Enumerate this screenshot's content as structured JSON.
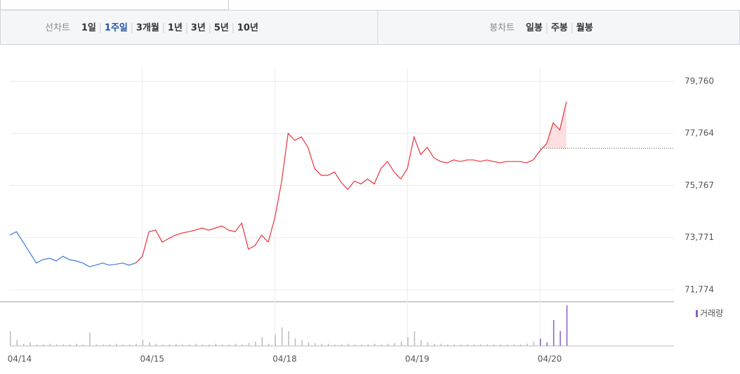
{
  "tabs": {
    "line_label": "선차트",
    "line_periods": [
      "1일",
      "1주일",
      "3개월",
      "1년",
      "3년",
      "5년",
      "10년"
    ],
    "active": 1,
    "candle_label": "봉차트",
    "candle_periods": [
      "일봉",
      "주봉",
      "월봉"
    ]
  },
  "chart_data": {
    "type": "line",
    "categories": [
      "04/14",
      "04/15",
      "04/18",
      "04/19",
      "04/20"
    ],
    "days": [
      {
        "color": "#3a7bd5",
        "values": [
          73870,
          74000,
          73600,
          73200,
          72800,
          72930,
          72980,
          72880,
          73060,
          72930,
          72880,
          72800,
          72660,
          72720,
          72800,
          72720,
          72750,
          72800,
          72720,
          72800
        ],
        "volume": [
          20,
          8,
          3,
          5,
          2,
          2,
          3,
          2,
          2,
          2,
          3,
          2,
          18,
          2,
          2,
          2,
          3,
          2,
          2,
          3
        ]
      },
      {
        "color": "#e8323c",
        "values": [
          73060,
          74000,
          74060,
          73600,
          73740,
          73870,
          73950,
          74000,
          74060,
          74140,
          74060,
          74140,
          74220,
          74060,
          74000,
          74330,
          73330,
          73470,
          73870,
          73600
        ],
        "volume": [
          8,
          5,
          3,
          2,
          2,
          3,
          2,
          2,
          3,
          2,
          2,
          3,
          2,
          2,
          3,
          2,
          4,
          6,
          12,
          3
        ]
      },
      {
        "color": "#e8323c",
        "values": [
          74540,
          75890,
          77770,
          77500,
          77630,
          77230,
          76420,
          76160,
          76160,
          76290,
          75890,
          75620,
          75940,
          75830,
          76020,
          75830,
          76420,
          76690,
          76290,
          76020
        ],
        "volume": [
          15,
          25,
          20,
          10,
          8,
          5,
          4,
          3,
          3,
          2,
          2,
          3,
          2,
          2,
          2,
          3,
          2,
          3,
          4,
          6
        ]
      },
      {
        "color": "#e8323c",
        "values": [
          76420,
          77630,
          76960,
          77230,
          76830,
          76690,
          76640,
          76750,
          76690,
          76750,
          76750,
          76690,
          76750,
          76690,
          76640,
          76690,
          76690,
          76690,
          76640,
          76750
        ],
        "volume": [
          12,
          20,
          8,
          5,
          3,
          3,
          2,
          2,
          2,
          2,
          2,
          2,
          2,
          2,
          2,
          2,
          2,
          2,
          3,
          6
        ]
      },
      {
        "color": "#e8323c",
        "values": [
          77100,
          77370,
          78170,
          77900,
          78980
        ],
        "volume": [
          10,
          5,
          35,
          20,
          55
        ]
      }
    ],
    "reference": 77200,
    "volume_label": "거래량",
    "volume_color": "#8a5fbf",
    "ylim": [
      71774,
      79760
    ],
    "yticks": [
      {
        "value": 71774,
        "label": "71,774"
      },
      {
        "value": 73771,
        "label": "73,771"
      },
      {
        "value": 75767,
        "label": "75,767"
      },
      {
        "value": 77764,
        "label": "77,764"
      },
      {
        "value": 79760,
        "label": "79,760"
      }
    ],
    "grid": true
  }
}
